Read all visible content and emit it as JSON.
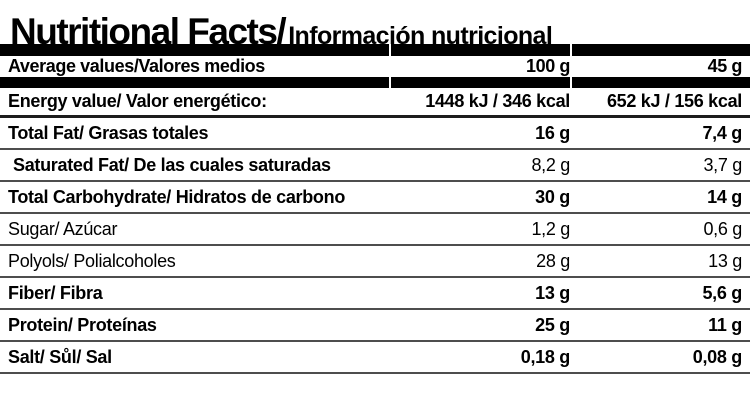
{
  "title": {
    "en": "Nutritional Facts/",
    "es": "Información nutricional"
  },
  "header": {
    "label": "Average values/Valores medios",
    "col_100g": "100 g",
    "col_45g": "45 g"
  },
  "rows": [
    {
      "label": "Energy value/ Valor energético:",
      "v100": "1448 kJ / 346 kcal",
      "v45": "652 kJ / 156 kcal"
    },
    {
      "label": "Total Fat/ Grasas totales",
      "v100": "16 g",
      "v45": "7,4 g"
    },
    {
      "label": "Saturated Fat/ De las cuales saturadas",
      "v100": "8,2 g",
      "v45": "3,7 g"
    },
    {
      "label": "Total Carbohydrate/ Hidratos de carbono",
      "v100": "30 g",
      "v45": "14 g"
    },
    {
      "label": "Sugar/ Azúcar",
      "v100": "1,2 g",
      "v45": "0,6 g"
    },
    {
      "label": "Polyols/ Polialcoholes",
      "v100": "28 g",
      "v45": "13 g"
    },
    {
      "label": "Fiber/ Fibra",
      "v100": "13 g",
      "v45": "5,6 g"
    },
    {
      "label": "Protein/ Proteínas",
      "v100": "25 g",
      "v45": "11 g"
    },
    {
      "label": "Salt/ Sůl/ Sal",
      "v100": "0,18 g",
      "v45": "0,08 g"
    }
  ],
  "colors": {
    "text": "#000000",
    "bar": "#000000",
    "separator": "#4d4d4d",
    "heavy_separator": "#1c1c1c",
    "background": "#ffffff"
  }
}
